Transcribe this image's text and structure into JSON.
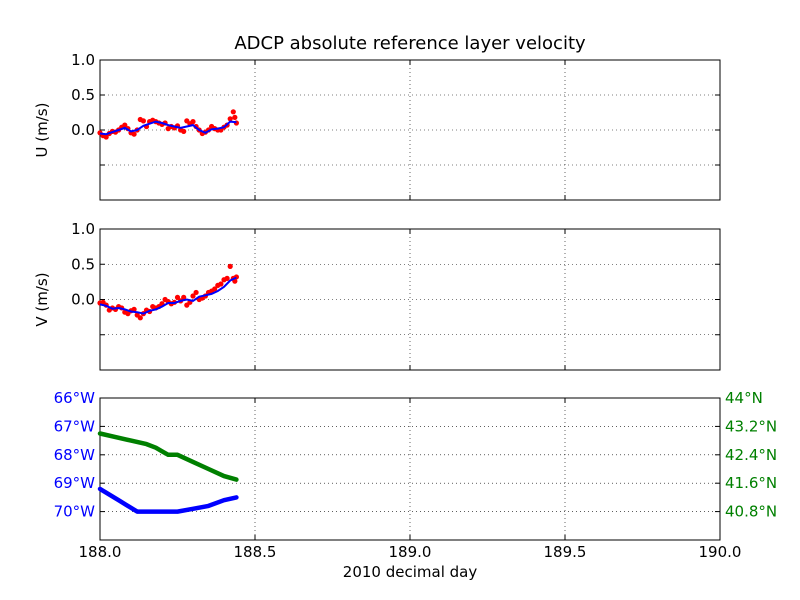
{
  "figure": {
    "title": "ADCP absolute reference layer velocity",
    "xlabel": "2010 decimal day"
  },
  "colors": {
    "measured_points": "#ff0000",
    "smoothed_line": "#0000ff",
    "longitude": "#0000ff",
    "latitude": "#008000",
    "grid": "#000000"
  },
  "chart_data": [
    {
      "type": "scatter",
      "panel": "u",
      "ylabel": "U (m/s)",
      "xlim": [
        188.0,
        190.0
      ],
      "ylim": [
        -1.0,
        1.0
      ],
      "xticks": [
        188.0,
        188.5,
        189.0,
        189.5,
        190.0
      ],
      "yticks": [
        -0.5,
        0.0,
        0.5,
        1.0
      ],
      "ytick_labels": [
        "",
        "0.0",
        "0.5",
        "1.0"
      ],
      "grid": true,
      "series": [
        {
          "style": "points",
          "x": [
            188.0,
            188.01,
            188.02,
            188.03,
            188.04,
            188.05,
            188.06,
            188.07,
            188.08,
            188.09,
            188.1,
            188.11,
            188.12,
            188.13,
            188.14,
            188.15,
            188.16,
            188.17,
            188.18,
            188.19,
            188.2,
            188.21,
            188.22,
            188.23,
            188.24,
            188.25,
            188.26,
            188.27,
            188.28,
            188.29,
            188.3,
            188.31,
            188.32,
            188.33,
            188.34,
            188.35,
            188.36,
            188.37,
            188.38,
            188.39,
            188.4,
            188.41,
            188.42,
            188.43,
            188.435,
            188.44
          ],
          "y": [
            -0.04,
            -0.08,
            -0.1,
            -0.05,
            -0.02,
            -0.03,
            0.0,
            0.04,
            0.07,
            0.02,
            -0.04,
            -0.06,
            0.0,
            0.15,
            0.13,
            0.05,
            0.12,
            0.14,
            0.12,
            0.1,
            0.08,
            0.1,
            0.02,
            0.05,
            0.03,
            0.06,
            0.0,
            -0.02,
            0.13,
            0.09,
            0.12,
            0.05,
            0.0,
            -0.05,
            -0.03,
            0.0,
            0.05,
            0.02,
            0.0,
            0.0,
            0.04,
            0.07,
            0.16,
            0.26,
            0.18,
            0.1
          ]
        },
        {
          "style": "line",
          "x": [
            188.0,
            188.02,
            188.04,
            188.06,
            188.08,
            188.1,
            188.12,
            188.14,
            188.16,
            188.18,
            188.2,
            188.22,
            188.24,
            188.26,
            188.28,
            188.3,
            188.32,
            188.34,
            188.36,
            188.38,
            188.4,
            188.42,
            188.44
          ],
          "y": [
            -0.05,
            -0.06,
            -0.03,
            0.0,
            0.03,
            -0.02,
            0.0,
            0.06,
            0.09,
            0.12,
            0.1,
            0.07,
            0.05,
            0.03,
            0.05,
            0.07,
            0.0,
            -0.04,
            0.01,
            0.02,
            0.04,
            0.12,
            0.11
          ]
        }
      ]
    },
    {
      "type": "scatter",
      "panel": "v",
      "ylabel": "V (m/s)",
      "xlim": [
        188.0,
        190.0
      ],
      "ylim": [
        -1.0,
        1.0
      ],
      "xticks": [
        188.0,
        188.5,
        189.0,
        189.5,
        190.0
      ],
      "yticks": [
        -0.5,
        0.0,
        0.5,
        1.0
      ],
      "ytick_labels": [
        "",
        "0.0",
        "0.5",
        "1.0"
      ],
      "grid": true,
      "series": [
        {
          "style": "points",
          "x": [
            188.0,
            188.01,
            188.02,
            188.03,
            188.04,
            188.05,
            188.06,
            188.07,
            188.08,
            188.09,
            188.1,
            188.11,
            188.12,
            188.13,
            188.14,
            188.15,
            188.16,
            188.17,
            188.18,
            188.19,
            188.2,
            188.21,
            188.22,
            188.23,
            188.24,
            188.25,
            188.26,
            188.27,
            188.28,
            188.29,
            188.3,
            188.31,
            188.32,
            188.33,
            188.34,
            188.35,
            188.36,
            188.37,
            188.38,
            188.39,
            188.4,
            188.41,
            188.42,
            188.43,
            188.435,
            188.44
          ],
          "y": [
            -0.05,
            -0.04,
            -0.08,
            -0.15,
            -0.12,
            -0.14,
            -0.1,
            -0.12,
            -0.18,
            -0.2,
            -0.16,
            -0.14,
            -0.22,
            -0.26,
            -0.2,
            -0.15,
            -0.17,
            -0.1,
            -0.12,
            -0.1,
            -0.06,
            0.0,
            -0.03,
            -0.06,
            -0.04,
            0.03,
            -0.02,
            0.03,
            -0.08,
            -0.04,
            0.05,
            0.1,
            0.0,
            0.02,
            0.05,
            0.1,
            0.12,
            0.15,
            0.2,
            0.22,
            0.28,
            0.3,
            0.47,
            0.3,
            0.26,
            0.32
          ]
        },
        {
          "style": "line",
          "x": [
            188.0,
            188.02,
            188.04,
            188.06,
            188.08,
            188.1,
            188.12,
            188.14,
            188.16,
            188.18,
            188.2,
            188.22,
            188.24,
            188.26,
            188.28,
            188.3,
            188.32,
            188.34,
            188.36,
            188.38,
            188.4,
            188.42,
            188.44
          ],
          "y": [
            -0.07,
            -0.09,
            -0.13,
            -0.12,
            -0.14,
            -0.17,
            -0.18,
            -0.2,
            -0.16,
            -0.14,
            -0.1,
            -0.05,
            -0.05,
            -0.02,
            0.0,
            -0.02,
            0.04,
            0.06,
            0.08,
            0.12,
            0.18,
            0.27,
            0.31
          ]
        }
      ]
    },
    {
      "type": "line",
      "panel": "position",
      "xlim": [
        188.0,
        190.0
      ],
      "xticks": [
        188.0,
        188.5,
        189.0,
        189.5,
        190.0
      ],
      "xtick_labels": [
        "188.0",
        "188.5",
        "189.0",
        "189.5",
        "190.0"
      ],
      "grid": true,
      "left_axis": {
        "unit": "degrees west longitude",
        "ylim": [
          66.0,
          71.0
        ],
        "ticks": [
          66,
          67,
          68,
          69,
          70
        ],
        "tick_labels": [
          "66°W",
          "67°W",
          "68°W",
          "69°W",
          "70°W"
        ],
        "inverted": true
      },
      "right_axis": {
        "unit": "degrees north latitude",
        "ylim": [
          40.0,
          44.0
        ],
        "ticks": [
          44.0,
          43.2,
          42.4,
          41.6,
          40.8
        ],
        "tick_labels": [
          "44°N",
          "43.2°N",
          "42.4°N",
          "41.6°N",
          "40.8°N"
        ]
      },
      "series": [
        {
          "axis": "left",
          "x": [
            188.0,
            188.03,
            188.06,
            188.09,
            188.12,
            188.15,
            188.2,
            188.25,
            188.3,
            188.35,
            188.4,
            188.44
          ],
          "y": [
            69.2,
            69.4,
            69.6,
            69.8,
            70.0,
            70.0,
            70.0,
            70.0,
            69.9,
            69.8,
            69.6,
            69.5
          ]
        },
        {
          "axis": "right",
          "x": [
            188.0,
            188.05,
            188.1,
            188.15,
            188.18,
            188.2,
            188.22,
            188.25,
            188.3,
            188.35,
            188.4,
            188.44
          ],
          "y": [
            43.0,
            42.9,
            42.8,
            42.7,
            42.6,
            42.5,
            42.4,
            42.4,
            42.2,
            42.0,
            41.8,
            41.7
          ]
        }
      ]
    }
  ]
}
